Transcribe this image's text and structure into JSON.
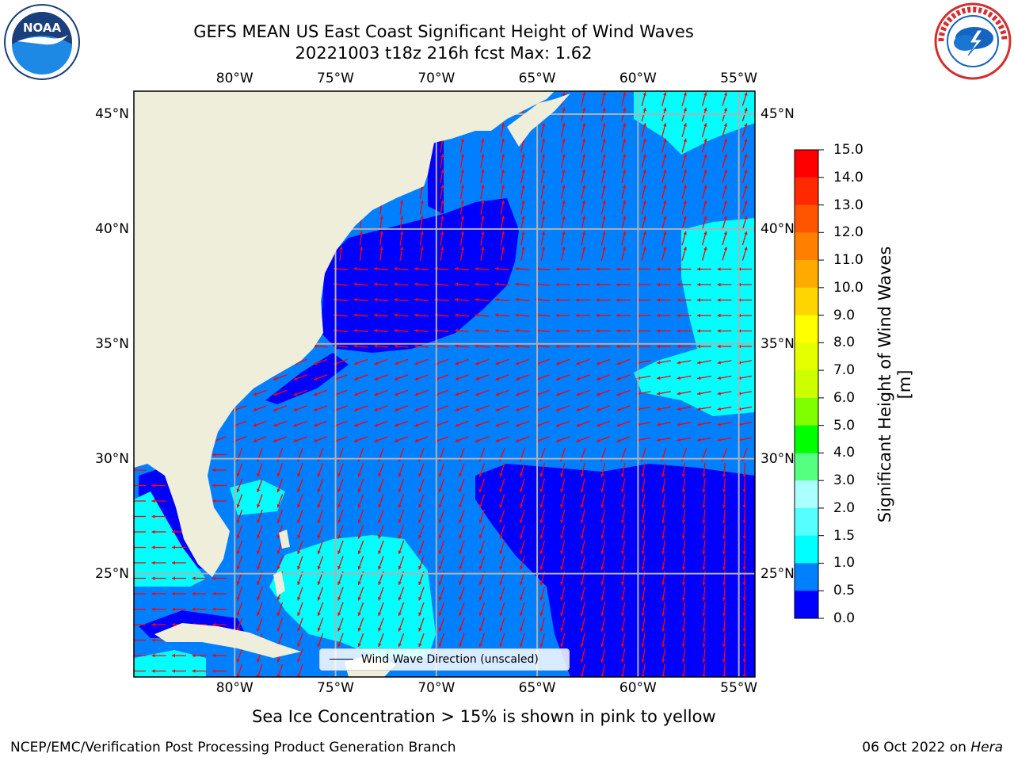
{
  "title": {
    "line1": "GEFS MEAN US East Coast Significant Height of Wind Waves",
    "line2": "20221003 t18z 216h fcst   Max: 1.62"
  },
  "map": {
    "lon_range": [
      -85,
      -54.2
    ],
    "lat_range": [
      20.5,
      46
    ],
    "lon_ticks": [
      "80°W",
      "75°W",
      "70°W",
      "65°W",
      "60°W",
      "55°W"
    ],
    "lat_ticks": [
      "45°N",
      "40°N",
      "35°N",
      "30°N",
      "25°N"
    ],
    "legend_label": "Wind Wave Direction (unscaled)",
    "colors": {
      "land": "#efeedb",
      "waves_0_0_5": "#0000ff",
      "waves_0_5_1": "#0080ff",
      "waves_1_1_5": "#00ffff",
      "grid": "#b0b0b0",
      "arrow": "#ff0000"
    }
  },
  "colorbar": {
    "label": "Significant Height of Wind Waves [m]",
    "ticks": [
      "15.0",
      "14.0",
      "13.0",
      "12.0",
      "11.0",
      "10.0",
      "9.0",
      "8.0",
      "7.0",
      "6.0",
      "5.0",
      "4.0",
      "3.0",
      "2.0",
      "1.5",
      "1.0",
      "0.5",
      "0.0"
    ],
    "colors": [
      "#ff0000",
      "#ff2a00",
      "#ff5500",
      "#ff8000",
      "#ffaa00",
      "#ffd500",
      "#ffff00",
      "#e6ff00",
      "#ccff00",
      "#80ff00",
      "#00ff00",
      "#55ff80",
      "#aaffff",
      "#55ffff",
      "#00ffff",
      "#0080ff",
      "#0000ff"
    ]
  },
  "footnote": "Sea Ice Concentration > 15% is shown in pink to yellow",
  "footer": {
    "left": "NCEP/EMC/Verification Post Processing Product Generation Branch",
    "date": "06 Oct 2022 on",
    "host": "Hera"
  },
  "logos": {
    "noaa": {
      "label": "NOAA"
    }
  }
}
